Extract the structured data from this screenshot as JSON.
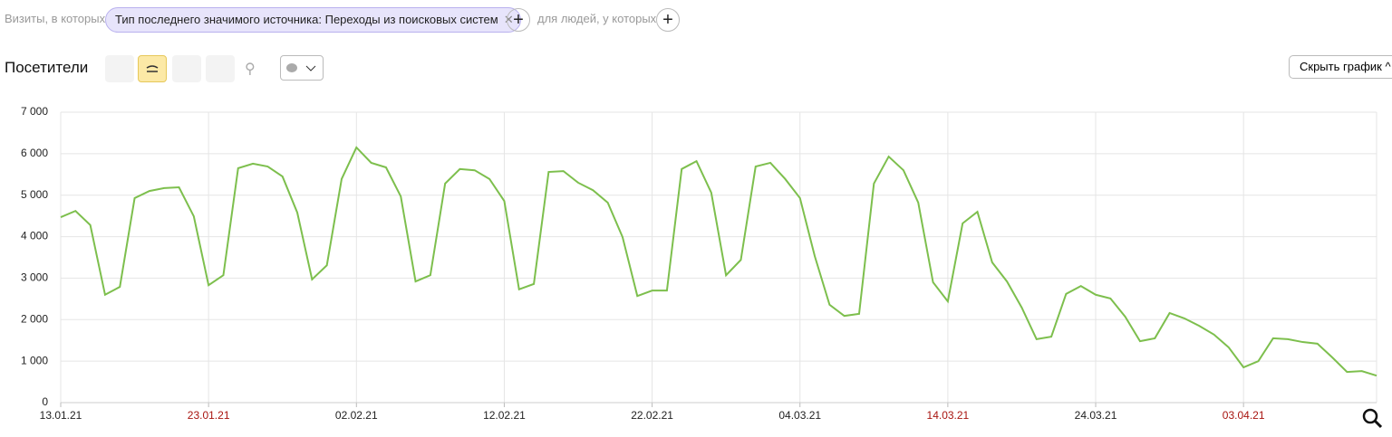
{
  "filters": {
    "prefix": "Визиты, в которых",
    "chip": "Тип последнего значимого источника: Переходы из поисковых систем",
    "people": "для людей, у которых"
  },
  "toolbar": {
    "hide_chart": "Скрыть график"
  },
  "chart_data": {
    "type": "line",
    "title": "Посетители",
    "categories": [
      "13.01.21",
      null,
      null,
      null,
      null,
      null,
      null,
      null,
      null,
      null,
      "23.01.21",
      null,
      null,
      null,
      null,
      null,
      null,
      null,
      null,
      null,
      "02.02.21",
      null,
      null,
      null,
      null,
      null,
      null,
      null,
      null,
      null,
      "12.02.21",
      null,
      null,
      null,
      null,
      null,
      null,
      null,
      null,
      null,
      "22.02.21",
      null,
      null,
      null,
      null,
      null,
      null,
      null,
      null,
      null,
      "04.03.21",
      null,
      null,
      null,
      null,
      null,
      null,
      null,
      null,
      null,
      "14.03.21",
      null,
      null,
      null,
      null,
      null,
      null,
      null,
      null,
      null,
      "24.03.21",
      null,
      null,
      null,
      null,
      null,
      null,
      null,
      null,
      null,
      "03.04.21",
      null,
      null,
      null,
      null,
      null,
      null,
      null,
      null,
      null
    ],
    "weekend_labels": [
      "23.01.21",
      "14.03.21",
      "03.04.21"
    ],
    "weekend_color": "#a8140f",
    "series": [
      {
        "color": "#7dbf4d",
        "values": [
          4470,
          4620,
          4280,
          2600,
          2790,
          4930,
          5100,
          5170,
          5190,
          4490,
          2830,
          3070,
          5650,
          5760,
          5690,
          5450,
          4580,
          2970,
          3310,
          5390,
          6150,
          5780,
          5670,
          4970,
          2920,
          3070,
          5280,
          5630,
          5600,
          5390,
          4860,
          2730,
          2860,
          5560,
          5580,
          5300,
          5120,
          4820,
          3990,
          2570,
          2700,
          2700,
          5630,
          5820,
          5060,
          3070,
          3440,
          5690,
          5780,
          5390,
          4930,
          3530,
          2360,
          2090,
          2140,
          5280,
          5930,
          5600,
          4820,
          2900,
          2440,
          4320,
          4600,
          3380,
          2920,
          2290,
          1530,
          1590,
          2620,
          2810,
          2600,
          2510,
          2070,
          1480,
          1550,
          2160,
          2030,
          1850,
          1640,
          1330,
          850,
          1000,
          1550,
          1530,
          1460,
          1420,
          1090,
          740,
          760,
          650
        ]
      }
    ],
    "ylim": [
      0,
      7000
    ],
    "yticks": [
      0,
      {
        "value": 1000,
        "label": "1 000"
      },
      {
        "value": 2000,
        "label": "2 000"
      },
      {
        "value": 3000,
        "label": "3 000"
      },
      {
        "value": 4000,
        "label": "4 000"
      },
      {
        "value": 5000,
        "label": "5 000"
      },
      {
        "value": 6000,
        "label": "6 000"
      },
      {
        "value": 7000,
        "label": "7 000"
      }
    ],
    "grid": true
  }
}
